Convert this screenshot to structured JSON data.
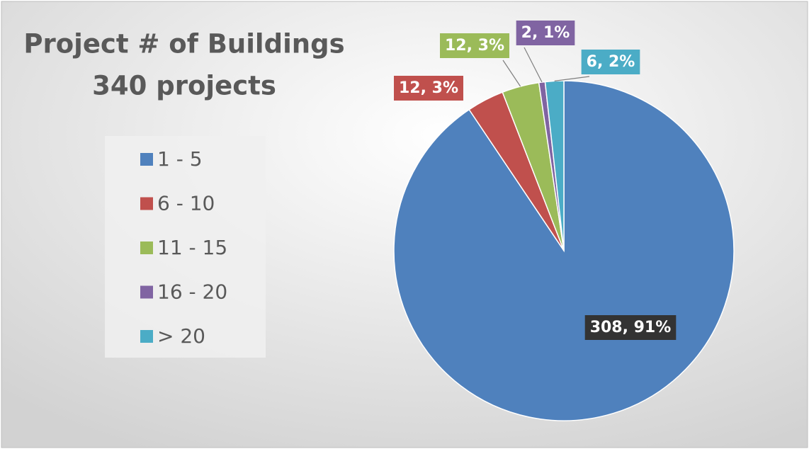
{
  "chart_data": {
    "type": "pie",
    "title": "Project # of Buildings",
    "subtitle": "340 projects",
    "categories": [
      "1 - 5",
      "6 - 10",
      "11 - 15",
      "16 - 20",
      "> 20"
    ],
    "values": [
      308,
      12,
      12,
      2,
      6
    ],
    "value_labels": [
      "308, 91%",
      "12, 3%",
      "12, 3%",
      "2, 1%",
      "6, 2%"
    ],
    "colors": [
      "#4f81bd",
      "#c0504d",
      "#9bbb59",
      "#8064a2",
      "#4bacc6"
    ],
    "legend": "left"
  }
}
